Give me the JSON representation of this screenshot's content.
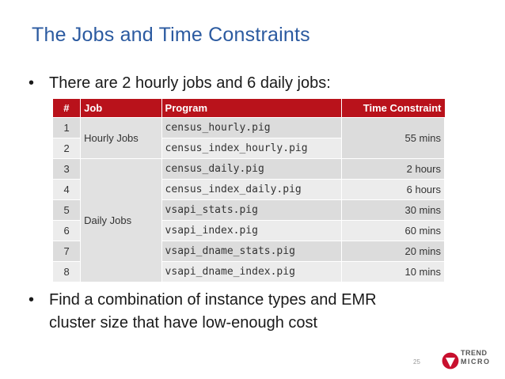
{
  "slide": {
    "title": "The Jobs and Time Constraints",
    "bullet1": "There are 2 hourly jobs and 6 daily jobs:",
    "bullet2_line1": "Find a combination of instance types and EMR",
    "bullet2_line2": "cluster size that have low-enough cost",
    "bullet_symbol": "•",
    "page_number": "25"
  },
  "table": {
    "headers": {
      "num": "#",
      "job": "Job",
      "program": "Program",
      "time": "Time Constraint"
    },
    "groups": {
      "hourly": "Hourly Jobs",
      "daily": "Daily Jobs"
    },
    "rows": [
      {
        "num": "1",
        "program": "census_hourly.pig",
        "time": ""
      },
      {
        "num": "2",
        "program": "census_index_hourly.pig",
        "time": ""
      },
      {
        "num": "3",
        "program": "census_daily.pig",
        "time": "2 hours"
      },
      {
        "num": "4",
        "program": "census_index_daily.pig",
        "time": "6 hours"
      },
      {
        "num": "5",
        "program": "vsapi_stats.pig",
        "time": "30 mins"
      },
      {
        "num": "6",
        "program": "vsapi_index.pig",
        "time": "60 mins"
      },
      {
        "num": "7",
        "program": "vsapi_dname_stats.pig",
        "time": "20 mins"
      },
      {
        "num": "8",
        "program": "vsapi_dname_index.pig",
        "time": "10 mins"
      }
    ],
    "hourly_time": "55 mins"
  },
  "logo": {
    "line1": "TREND",
    "line2": "MICRO",
    "icon": "trend-micro-logo-icon"
  },
  "colors": {
    "title": "#2b5aa0",
    "header_bg": "#b9121b",
    "cell_bg": "#dcdcdc"
  }
}
